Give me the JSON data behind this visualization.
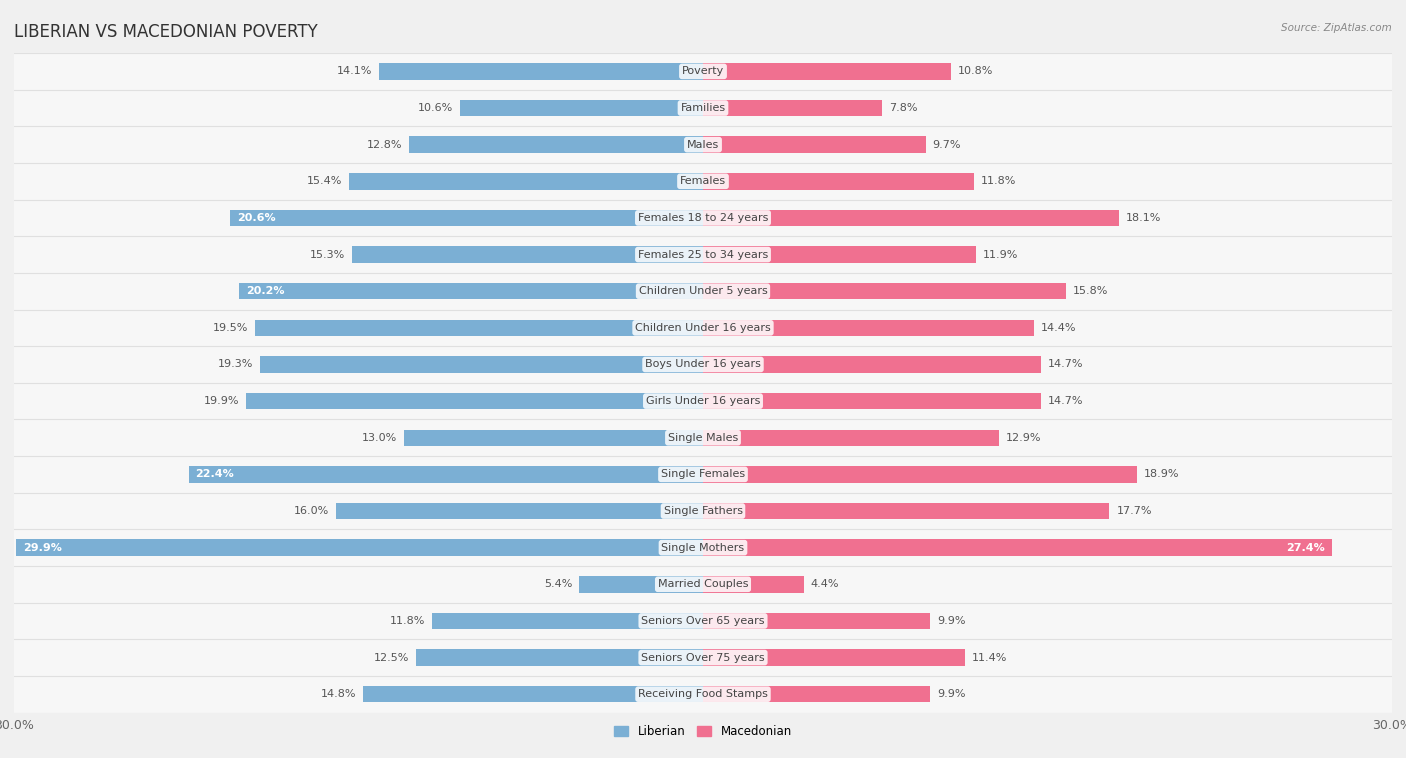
{
  "title": "LIBERIAN VS MACEDONIAN POVERTY",
  "source": "Source: ZipAtlas.com",
  "categories": [
    "Poverty",
    "Families",
    "Males",
    "Females",
    "Females 18 to 24 years",
    "Females 25 to 34 years",
    "Children Under 5 years",
    "Children Under 16 years",
    "Boys Under 16 years",
    "Girls Under 16 years",
    "Single Males",
    "Single Females",
    "Single Fathers",
    "Single Mothers",
    "Married Couples",
    "Seniors Over 65 years",
    "Seniors Over 75 years",
    "Receiving Food Stamps"
  ],
  "liberian": [
    14.1,
    10.6,
    12.8,
    15.4,
    20.6,
    15.3,
    20.2,
    19.5,
    19.3,
    19.9,
    13.0,
    22.4,
    16.0,
    29.9,
    5.4,
    11.8,
    12.5,
    14.8
  ],
  "macedonian": [
    10.8,
    7.8,
    9.7,
    11.8,
    18.1,
    11.9,
    15.8,
    14.4,
    14.7,
    14.7,
    12.9,
    18.9,
    17.7,
    27.4,
    4.4,
    9.9,
    11.4,
    9.9
  ],
  "liberian_color": "#7bafd4",
  "macedonian_color": "#f07090",
  "background_color": "#f0f0f0",
  "row_bg_color": "#f7f7f7",
  "row_separator_color": "#e0e0e0",
  "axis_max": 30.0,
  "title_fontsize": 12,
  "label_fontsize": 8,
  "value_fontsize": 8,
  "tick_fontsize": 9,
  "bar_height": 0.45,
  "lib_label_threshold": 20.0,
  "mac_label_threshold": 25.0
}
